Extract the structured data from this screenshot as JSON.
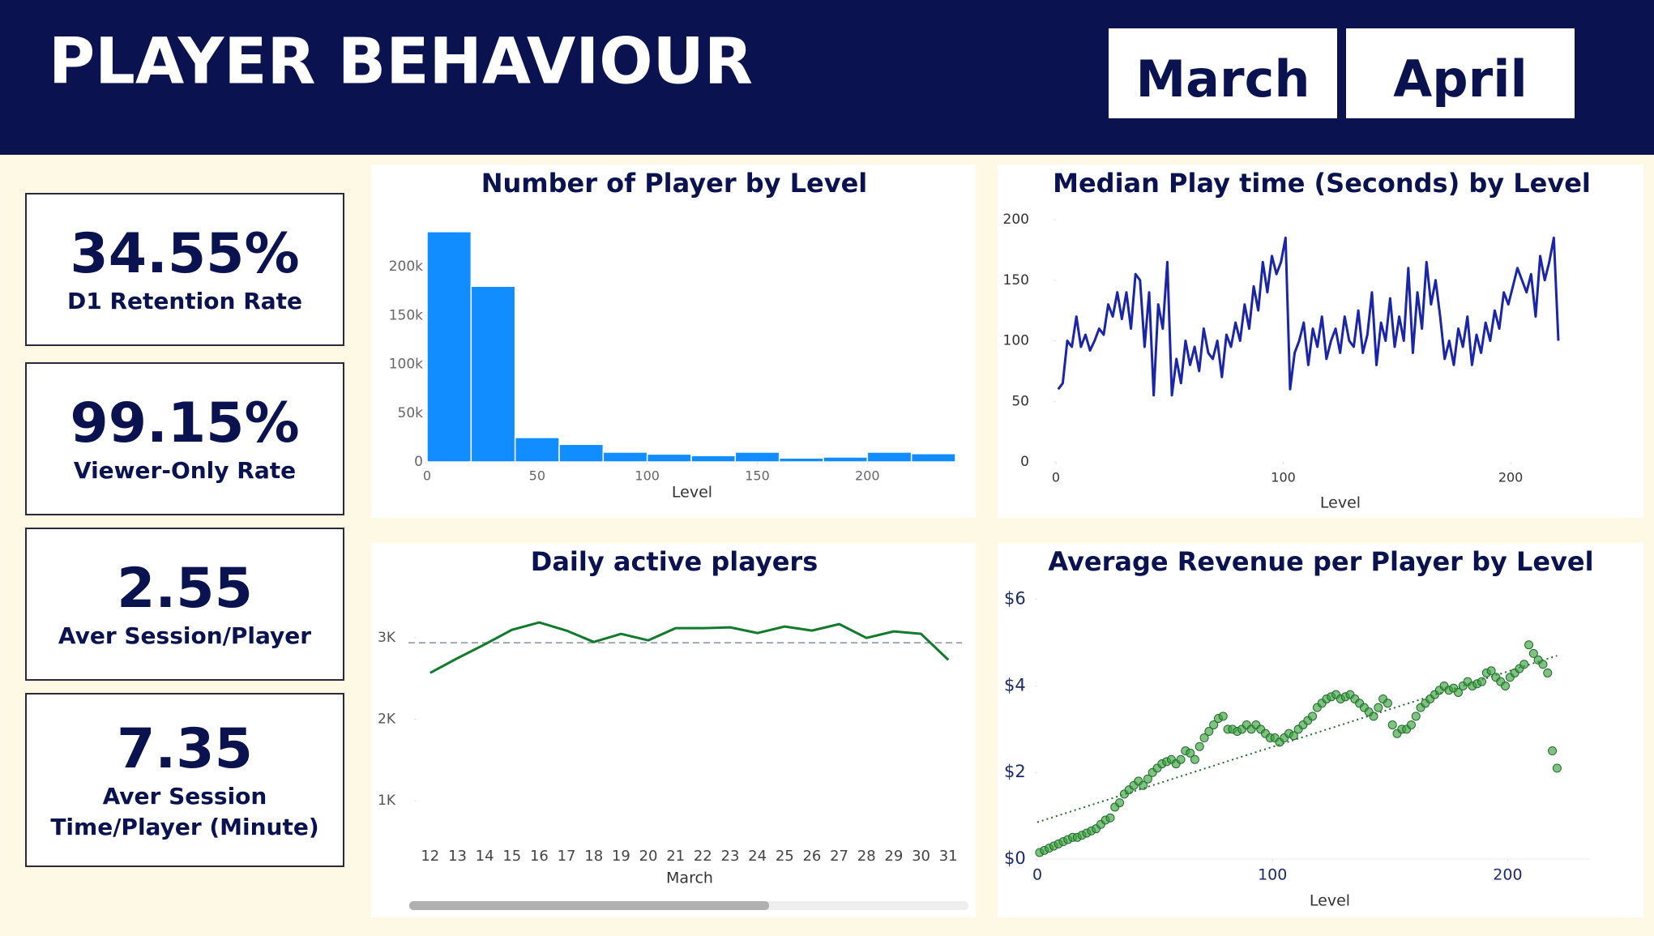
{
  "header": {
    "title": "PLAYER BEHAVIOUR",
    "buttons": [
      "March",
      "April"
    ]
  },
  "kpis": [
    {
      "value": "34.55%",
      "label": "D1 Retention Rate"
    },
    {
      "value": "99.15%",
      "label": "Viewer-Only Rate"
    },
    {
      "value": "2.55",
      "label": "Aver Session/Player"
    },
    {
      "value": "7.35",
      "label": "Aver Session Time/Player (Minute)"
    }
  ],
  "chart_data": [
    {
      "type": "histogram",
      "title": "Number of Player by Level",
      "x_label": "Level",
      "color": "#118dff",
      "bins": [
        0,
        20,
        40,
        60,
        80,
        100,
        120,
        140,
        160,
        180,
        200,
        220,
        240
      ],
      "values": [
        236000,
        180000,
        25000,
        18000,
        10000,
        8000,
        6500,
        10000,
        4000,
        5000,
        10000,
        8500
      ],
      "xlim": [
        0,
        240
      ],
      "ylim": [
        0,
        250000
      ],
      "xticks": [
        0,
        50,
        100,
        150,
        200
      ],
      "yticks": [
        0,
        {
          "value": 50000,
          "label": "50k"
        },
        {
          "value": 100000,
          "label": "100k"
        },
        {
          "value": 150000,
          "label": "150k"
        },
        {
          "value": 200000,
          "label": "200k"
        }
      ]
    },
    {
      "type": "line",
      "title": "Median Play time (Seconds) by Level",
      "x_label": "Level",
      "color": "#1a25a8",
      "x": [
        1,
        3,
        5,
        7,
        9,
        11,
        13,
        15,
        17,
        19,
        21,
        23,
        25,
        27,
        29,
        31,
        33,
        35,
        37,
        39,
        41,
        43,
        45,
        47,
        49,
        51,
        53,
        55,
        57,
        59,
        61,
        63,
        65,
        67,
        69,
        71,
        73,
        75,
        77,
        79,
        81,
        83,
        85,
        87,
        89,
        91,
        93,
        95,
        97,
        99,
        101,
        103,
        105,
        107,
        109,
        111,
        113,
        115,
        117,
        119,
        121,
        123,
        125,
        127,
        129,
        131,
        133,
        135,
        137,
        139,
        141,
        143,
        145,
        147,
        149,
        151,
        153,
        155,
        157,
        159,
        161,
        163,
        165,
        167,
        169,
        171,
        173,
        175,
        177,
        179,
        181,
        183,
        185,
        187,
        189,
        191,
        193,
        195,
        197,
        199,
        201,
        203,
        205,
        207,
        209,
        211,
        213,
        215,
        217,
        219,
        221
      ],
      "values": [
        60,
        65,
        100,
        95,
        120,
        95,
        105,
        92,
        100,
        110,
        105,
        130,
        120,
        140,
        118,
        140,
        110,
        155,
        150,
        95,
        140,
        55,
        130,
        110,
        165,
        55,
        85,
        65,
        100,
        80,
        95,
        75,
        110,
        90,
        85,
        100,
        70,
        105,
        95,
        115,
        100,
        130,
        110,
        145,
        125,
        165,
        140,
        170,
        155,
        165,
        185,
        60,
        90,
        100,
        115,
        80,
        110,
        95,
        120,
        85,
        100,
        110,
        90,
        120,
        100,
        95,
        125,
        90,
        105,
        140,
        80,
        115,
        100,
        135,
        95,
        120,
        100,
        160,
        90,
        140,
        110,
        165,
        130,
        150,
        120,
        85,
        100,
        80,
        110,
        95,
        120,
        80,
        105,
        90,
        115,
        100,
        125,
        110,
        140,
        130,
        145,
        160,
        150,
        140,
        155,
        120,
        170,
        150,
        165,
        185,
        100
      ],
      "xlim": [
        0,
        221
      ],
      "ylim": [
        0,
        200
      ],
      "xticks": [
        0,
        100,
        200
      ],
      "yticks": [
        0,
        50,
        100,
        150,
        200
      ]
    },
    {
      "type": "line",
      "title": "Daily active players",
      "x_label": "March",
      "color": "#117a2c",
      "categories": [
        "12",
        "13",
        "14",
        "15",
        "16",
        "17",
        "18",
        "19",
        "20",
        "21",
        "22",
        "23",
        "24",
        "25",
        "26",
        "27",
        "28",
        "29",
        "30",
        "31"
      ],
      "values": [
        2570,
        2750,
        2920,
        3100,
        3190,
        3090,
        2950,
        3050,
        2970,
        3120,
        3120,
        3130,
        3060,
        3140,
        3090,
        3170,
        3000,
        3080,
        3050,
        2730
      ],
      "reference_line": 2940,
      "reference_color": "#8a8fa8",
      "ylim": [
        500,
        3500
      ],
      "yticks": [
        {
          "value": 1000,
          "label": "1K"
        },
        {
          "value": 2000,
          "label": "2K"
        },
        {
          "value": 3000,
          "label": "3K"
        }
      ]
    },
    {
      "type": "scatter",
      "title": "Average Revenue per Player by Level",
      "x_label": "Level",
      "color": "#3aa13f",
      "x": [
        1,
        3,
        5,
        7,
        9,
        11,
        13,
        15,
        17,
        19,
        21,
        23,
        25,
        27,
        29,
        31,
        33,
        35,
        37,
        39,
        41,
        43,
        45,
        47,
        49,
        51,
        53,
        55,
        57,
        59,
        61,
        63,
        65,
        67,
        69,
        71,
        73,
        75,
        77,
        79,
        81,
        83,
        85,
        87,
        89,
        91,
        93,
        95,
        97,
        99,
        101,
        103,
        105,
        107,
        109,
        111,
        113,
        115,
        117,
        119,
        121,
        123,
        125,
        127,
        129,
        131,
        133,
        135,
        137,
        139,
        141,
        143,
        145,
        147,
        149,
        151,
        153,
        155,
        157,
        159,
        161,
        163,
        165,
        167,
        169,
        171,
        173,
        175,
        177,
        179,
        181,
        183,
        185,
        187,
        189,
        191,
        193,
        195,
        197,
        199,
        201,
        203,
        205,
        207,
        209,
        211,
        213,
        215,
        217,
        219,
        221
      ],
      "values": [
        0.15,
        0.2,
        0.25,
        0.3,
        0.35,
        0.4,
        0.45,
        0.5,
        0.5,
        0.55,
        0.6,
        0.65,
        0.7,
        0.8,
        0.9,
        0.95,
        1.2,
        1.3,
        1.5,
        1.6,
        1.7,
        1.8,
        1.7,
        1.85,
        2.0,
        2.1,
        2.2,
        2.25,
        2.3,
        2.2,
        2.3,
        2.5,
        2.45,
        2.3,
        2.6,
        2.8,
        2.95,
        3.1,
        3.25,
        3.3,
        3.0,
        3.0,
        2.95,
        3.0,
        3.1,
        3.0,
        3.1,
        3.0,
        2.9,
        2.8,
        2.8,
        2.7,
        2.8,
        2.9,
        2.85,
        3.0,
        3.1,
        3.2,
        3.3,
        3.5,
        3.6,
        3.7,
        3.75,
        3.8,
        3.7,
        3.75,
        3.8,
        3.7,
        3.6,
        3.5,
        3.4,
        3.3,
        3.5,
        3.7,
        3.6,
        3.1,
        2.9,
        3.0,
        3.0,
        3.1,
        3.3,
        3.5,
        3.6,
        3.7,
        3.8,
        3.9,
        4.0,
        3.9,
        3.95,
        3.85,
        4.0,
        4.1,
        4.0,
        4.05,
        4.1,
        4.3,
        4.35,
        4.2,
        4.1,
        4.0,
        4.2,
        4.3,
        4.4,
        4.5,
        4.95,
        4.75,
        4.6,
        4.5,
        4.3,
        2.5,
        2.1
      ],
      "trendline": {
        "x": [
          0,
          221
        ],
        "values": [
          0.85,
          4.7
        ]
      },
      "xlim": [
        0,
        235
      ],
      "ylim": [
        0,
        6.2
      ],
      "xticks": [
        0,
        100,
        200
      ],
      "yticks": [
        {
          "value": 0,
          "label": "$0"
        },
        {
          "value": 2,
          "label": "$2"
        },
        {
          "value": 4,
          "label": "$4"
        },
        {
          "value": 6,
          "label": "$6"
        }
      ]
    }
  ]
}
